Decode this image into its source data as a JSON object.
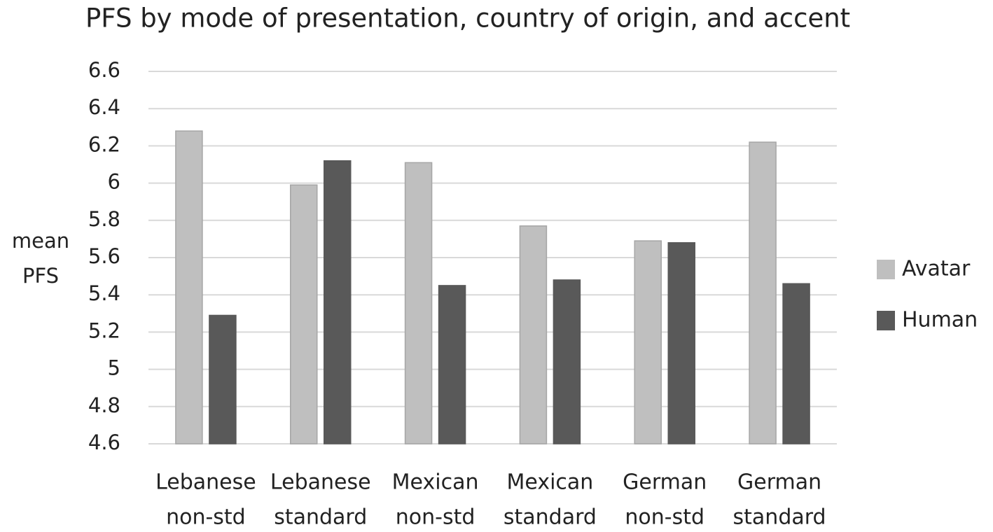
{
  "chart_data": {
    "type": "bar",
    "title": "PFS by mode of presentation, country of origin, and accent",
    "y_label": [
      "mean",
      "PFS"
    ],
    "categories": [
      [
        "Lebanese",
        "non-std"
      ],
      [
        "Lebanese",
        "standard"
      ],
      [
        "Mexican",
        "non-std"
      ],
      [
        "Mexican",
        "standard"
      ],
      [
        "German",
        "non-std"
      ],
      [
        "German",
        "standard"
      ]
    ],
    "series": [
      {
        "name": "Avatar",
        "color": "#bfbfbf",
        "values": [
          6.28,
          5.99,
          6.11,
          5.77,
          5.69,
          6.22
        ]
      },
      {
        "name": "Human",
        "color": "#595959",
        "values": [
          5.29,
          6.12,
          5.45,
          5.48,
          5.68,
          5.46
        ]
      }
    ],
    "ylim": [
      4.6,
      6.6
    ],
    "yticks": [
      4.6,
      4.8,
      5,
      5.2,
      5.4,
      5.6,
      5.8,
      6,
      6.2,
      6.4,
      6.6
    ],
    "grid": true,
    "legend": "right"
  }
}
